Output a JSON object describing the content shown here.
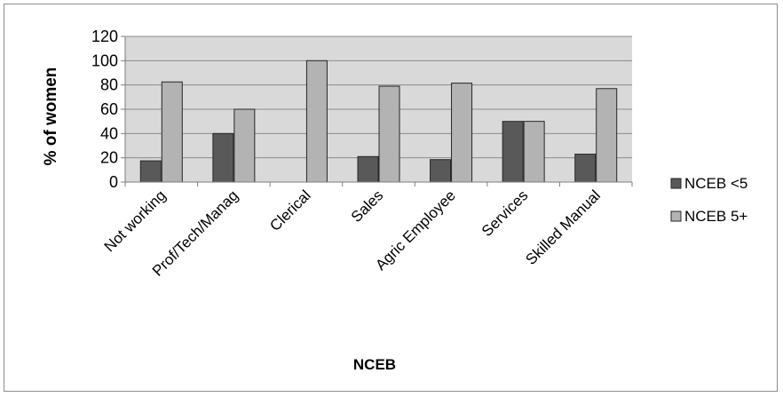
{
  "chart_data": {
    "type": "bar",
    "title": "",
    "xlabel": "NCEB",
    "ylabel": "% of women",
    "ylim": [
      0,
      120
    ],
    "yticks": [
      0,
      20,
      40,
      60,
      80,
      100,
      120
    ],
    "grid": true,
    "legend_position": "right",
    "categories": [
      "Not working",
      "Prof/Tech/Manag",
      "Clerical",
      "Sales",
      "Agric Employee",
      "Services",
      "Skilled Manual"
    ],
    "series": [
      {
        "name": "NCEB <5",
        "color": "#595959",
        "values": [
          17.5,
          40,
          0,
          21,
          18.5,
          50,
          23
        ]
      },
      {
        "name": "NCEB 5+",
        "color": "#b3b3b3",
        "values": [
          82.5,
          60,
          100,
          79,
          81.5,
          50,
          77
        ]
      }
    ]
  }
}
